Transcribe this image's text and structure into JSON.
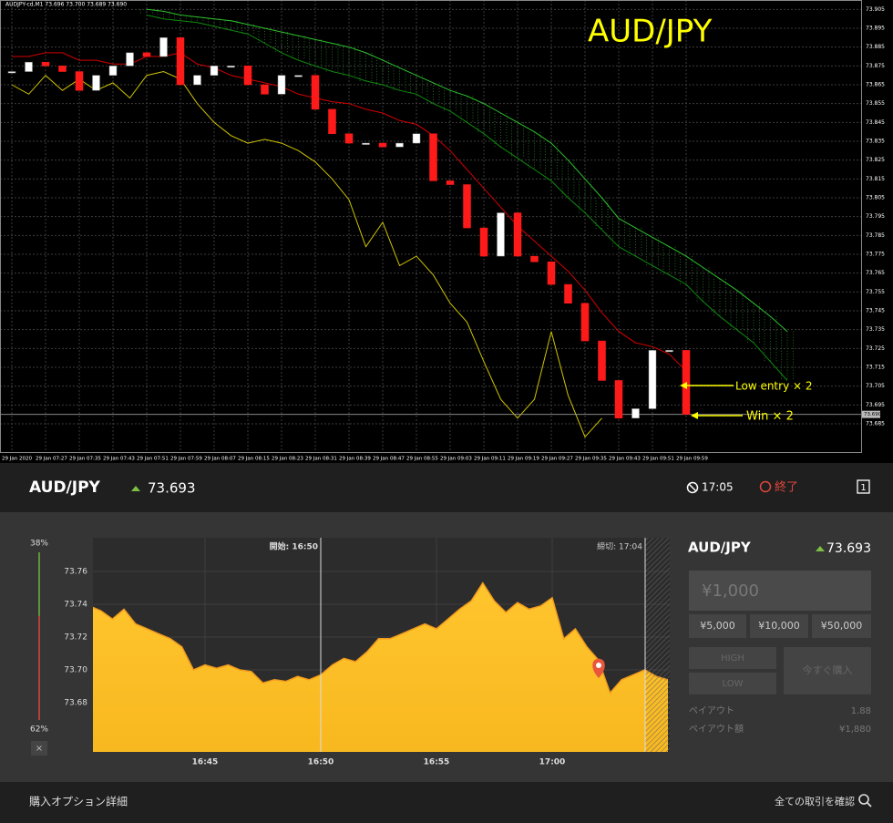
{
  "chart_data": [
    {
      "type": "candlestick",
      "header": "AUDJPY-cd,M1  73.696 73.700 73.689 73.690",
      "title": "AUD/JPY",
      "annotations": [
        "Low entry × 2",
        "Win × 2"
      ],
      "categories": [
        "29 Jan 2020",
        null,
        "29 Jan 07:27",
        null,
        "29 Jan 07:35",
        null,
        "29 Jan 07:43",
        null,
        "29 Jan 07:51",
        null,
        "29 Jan 07:59",
        null,
        "29 Jan 08:07",
        null,
        "29 Jan 08:15",
        null,
        "29 Jan 08:23",
        null,
        "29 Jan 08:31",
        null,
        "29 Jan 08:39",
        null,
        "29 Jan 08:47",
        null,
        "29 Jan 08:55",
        null,
        "29 Jan 09:03",
        null,
        "29 Jan 09:11",
        null,
        "29 Jan 09:19",
        null,
        "29 Jan 09:27",
        null,
        "29 Jan 09:35",
        null,
        "29 Jan 09:43",
        null,
        "29 Jan 09:51",
        null,
        "29 Jan 09:59",
        null,
        null,
        null,
        null,
        null,
        null
      ],
      "values": [
        73.872,
        73.877,
        73.875,
        73.872,
        73.862,
        73.87,
        73.875,
        73.882,
        73.88,
        73.89,
        73.865,
        73.87,
        73.875,
        73.875,
        73.865,
        73.86,
        73.87,
        73.87,
        73.852,
        73.839,
        73.834,
        73.834,
        73.832,
        73.834,
        73.839,
        73.814,
        73.812,
        73.789,
        73.774,
        73.797,
        73.774,
        73.771,
        73.759,
        73.749,
        73.729,
        73.708,
        73.688,
        73.693,
        73.724,
        73.724,
        73.69,
        null,
        null,
        null,
        null,
        null,
        null
      ],
      "color_up": "#ffffff",
      "color_down": "#ff1a1a",
      "series": [
        {
          "color": "#d40000",
          "values": [
            73.88,
            73.88,
            73.882,
            73.882,
            73.878,
            73.878,
            73.876,
            73.876,
            73.88,
            73.88,
            73.882,
            73.876,
            73.874,
            73.87,
            73.868,
            73.866,
            73.864,
            73.86,
            73.858,
            73.856,
            73.855,
            73.852,
            73.85,
            73.846,
            73.844,
            73.838,
            73.83,
            73.82,
            73.81,
            73.8,
            73.79,
            73.782,
            73.774,
            73.766,
            73.756,
            73.744,
            73.734,
            73.728,
            73.726,
            73.722,
            73.713,
            null,
            null,
            null,
            null,
            null,
            null
          ]
        },
        {
          "color": "#cfc400",
          "values": [
            73.865,
            73.86,
            73.87,
            73.862,
            73.868,
            73.862,
            73.866,
            73.858,
            73.87,
            73.872,
            73.868,
            73.855,
            73.845,
            73.838,
            73.834,
            73.836,
            73.834,
            73.83,
            73.824,
            73.815,
            73.804,
            73.779,
            73.792,
            73.769,
            73.774,
            73.764,
            73.749,
            73.739,
            73.718,
            73.698,
            73.688,
            73.698,
            73.734,
            73.7,
            73.678,
            73.688,
            null,
            null,
            null,
            null,
            null,
            null,
            null,
            null,
            null,
            null,
            null
          ]
        },
        {
          "color": "#2ec02e",
          "values": [
            null,
            null,
            null,
            null,
            null,
            null,
            null,
            null,
            73.905,
            73.904,
            73.902,
            73.901,
            73.9,
            73.899,
            73.897,
            73.895,
            73.893,
            73.891,
            73.889,
            73.887,
            73.885,
            73.882,
            73.878,
            73.874,
            73.87,
            73.866,
            73.862,
            73.859,
            73.855,
            73.85,
            73.845,
            73.84,
            73.834,
            73.825,
            73.815,
            73.805,
            73.794,
            73.789,
            73.784,
            73.779,
            73.774,
            73.768,
            73.762,
            73.756,
            73.749,
            73.742,
            73.734
          ]
        },
        {
          "color": "#0f8a0f",
          "values": [
            null,
            null,
            null,
            null,
            null,
            null,
            null,
            null,
            73.902,
            73.9,
            73.899,
            73.898,
            73.896,
            73.894,
            73.892,
            73.887,
            73.882,
            73.878,
            73.875,
            73.872,
            73.87,
            73.867,
            73.865,
            73.862,
            73.86,
            73.855,
            73.851,
            73.845,
            73.839,
            73.832,
            73.826,
            73.82,
            73.814,
            73.805,
            73.797,
            73.788,
            73.779,
            73.774,
            73.769,
            73.764,
            73.759,
            73.75,
            73.742,
            73.735,
            73.728,
            73.718,
            73.708
          ]
        }
      ],
      "cloud_color": "#1f6b1f",
      "ylim": [
        73.67,
        73.91
      ],
      "yticks": [
        73.905,
        73.895,
        73.885,
        73.875,
        73.865,
        73.855,
        73.845,
        73.835,
        73.825,
        73.815,
        73.805,
        73.795,
        73.785,
        73.775,
        73.765,
        73.755,
        73.745,
        73.735,
        73.725,
        73.715,
        73.705,
        73.695,
        73.685
      ],
      "grid": true,
      "last_price": {
        "value": 73.69,
        "label": "73.690"
      }
    },
    {
      "type": "area",
      "categories": [
        null,
        null,
        null,
        null,
        null,
        null,
        null,
        null,
        null,
        null,
        "16:45",
        null,
        null,
        null,
        null,
        null,
        null,
        null,
        null,
        null,
        "16:50",
        null,
        null,
        null,
        null,
        null,
        null,
        null,
        null,
        null,
        "16:55",
        null,
        null,
        null,
        null,
        null,
        null,
        null,
        null,
        null,
        "17:00",
        null,
        null,
        null,
        null,
        null,
        null,
        null,
        null,
        null,
        null
      ],
      "values": [
        73.739,
        73.736,
        73.731,
        73.737,
        73.728,
        73.725,
        73.722,
        73.719,
        73.714,
        73.7,
        73.703,
        73.701,
        73.703,
        73.7,
        73.699,
        73.692,
        73.694,
        73.693,
        73.696,
        73.694,
        73.697,
        73.703,
        73.707,
        73.705,
        73.711,
        73.719,
        73.719,
        73.722,
        73.725,
        73.728,
        73.725,
        73.731,
        73.737,
        73.742,
        73.753,
        73.742,
        73.735,
        73.741,
        73.737,
        73.739,
        73.744,
        73.719,
        73.725,
        73.714,
        73.706,
        73.686,
        73.694,
        73.697,
        73.7,
        73.696,
        73.694
      ],
      "color": "#ffc52e",
      "ylim": [
        73.65,
        73.78
      ],
      "yticks": [
        73.68,
        {
          "value": 73.7,
          "label": "73.70"
        },
        73.72,
        73.74,
        73.76
      ],
      "grid": true,
      "start_label": "開始: 16:50",
      "close_label": "締切: 17:04"
    }
  ],
  "ui": {
    "header": {
      "pair": "AUD/JPY",
      "price": "73.693",
      "timer": "17:05",
      "status": "終了",
      "tab": "1"
    },
    "gauge": {
      "values": [
        38,
        62
      ],
      "value_labels": [
        "38%",
        "62%"
      ],
      "close": "×"
    },
    "panel": {
      "pair": "AUD/JPY",
      "price": "73.693",
      "amount": "¥1,000",
      "presets": [
        "¥5,000",
        "¥10,000",
        "¥50,000"
      ],
      "high": "HIGH",
      "low": "LOW",
      "buy": "今すぐ購入",
      "payout_label": "ペイアウト",
      "payout": "1.88",
      "payout_amount_label": "ペイアウト額",
      "payout_amount": "¥1,880"
    },
    "footer": {
      "details": "購入オプション詳細",
      "all_trades": "全ての取引を確認"
    }
  }
}
